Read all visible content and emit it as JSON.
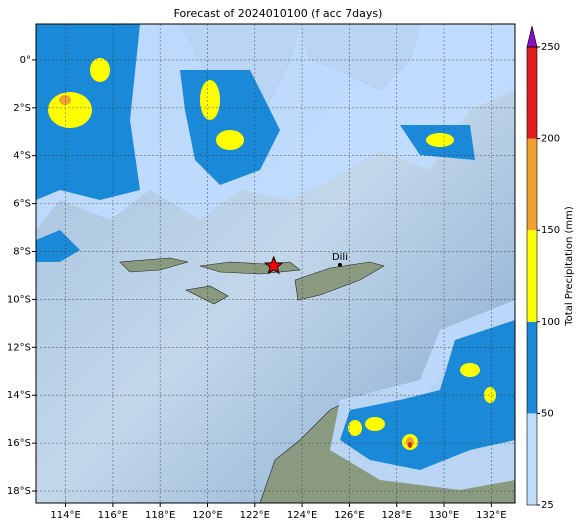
{
  "map": {
    "title": "Forecast of 2024010100 (f acc 7days)",
    "lonlim": [
      112.75,
      133
    ],
    "latlim": [
      -18.5,
      1.5
    ],
    "lonticks": [
      {
        "value": 114,
        "label": "114°E"
      },
      {
        "value": 116,
        "label": "116°E"
      },
      {
        "value": 118,
        "label": "118°E"
      },
      {
        "value": 120,
        "label": "120°E"
      },
      {
        "value": 122,
        "label": "122°E"
      },
      {
        "value": 124,
        "label": "124°E"
      },
      {
        "value": 126,
        "label": "126°E"
      },
      {
        "value": 128,
        "label": "128°E"
      },
      {
        "value": 130,
        "label": "130°E"
      },
      {
        "value": 132,
        "label": "132°E"
      }
    ],
    "latticks": [
      {
        "value": 0,
        "label": "0°"
      },
      {
        "value": -2,
        "label": "2°S"
      },
      {
        "value": -4,
        "label": "4°S"
      },
      {
        "value": -6,
        "label": "6°S"
      },
      {
        "value": -8,
        "label": "8°S"
      },
      {
        "value": -10,
        "label": "10°S"
      },
      {
        "value": -12,
        "label": "12°S"
      },
      {
        "value": -14,
        "label": "14°S"
      },
      {
        "value": -16,
        "label": "16°S"
      },
      {
        "value": -18,
        "label": "18°S"
      }
    ],
    "grid": true,
    "colorbar": {
      "label": "Total Precipitation (mm)",
      "levels": [
        25,
        50,
        100,
        150,
        200,
        250
      ],
      "colors": [
        "#bfdcff",
        "#1a8ad8",
        "#ffff00",
        "#f0a030",
        "#e01e1e"
      ],
      "extend_color": "#8a10c8"
    },
    "markers": [
      {
        "lon": 122.8,
        "lat": -8.6,
        "symbol": "star",
        "color": "#ff0000"
      },
      {
        "lon": 125.6,
        "lat": -8.56,
        "symbol": "dot",
        "color": "#000000",
        "label": "Dili"
      }
    ]
  }
}
